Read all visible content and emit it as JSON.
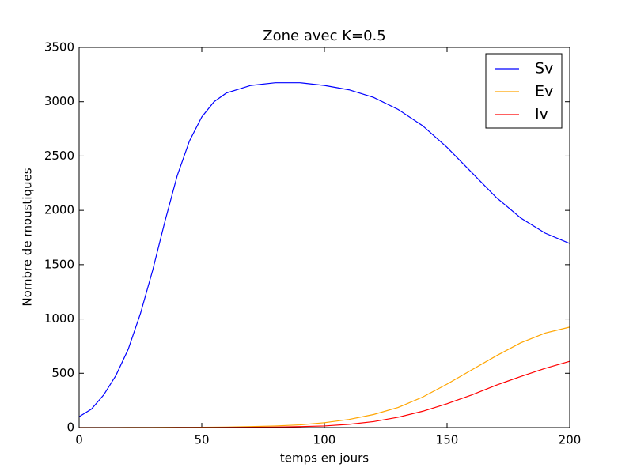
{
  "chart_data": {
    "type": "line",
    "title": "Zone avec K=0.5",
    "xlabel": "temps en jours",
    "ylabel": "Nombre de moustiques",
    "x": [
      0,
      5,
      10,
      15,
      20,
      25,
      30,
      35,
      40,
      45,
      50,
      55,
      60,
      70,
      80,
      90,
      100,
      110,
      120,
      130,
      140,
      150,
      160,
      170,
      180,
      190,
      200
    ],
    "series": [
      {
        "name": "Sv",
        "color": "#0000ff",
        "values": [
          100,
          170,
          300,
          480,
          720,
          1050,
          1450,
          1900,
          2320,
          2640,
          2860,
          3000,
          3080,
          3150,
          3175,
          3175,
          3150,
          3110,
          3040,
          2930,
          2780,
          2580,
          2350,
          2120,
          1930,
          1790,
          1695
        ]
      },
      {
        "name": "Ev",
        "color": "#ffa500",
        "values": [
          0,
          0,
          0,
          0,
          1,
          1,
          1,
          2,
          2,
          2,
          3,
          4,
          5,
          9,
          15,
          25,
          45,
          75,
          120,
          185,
          280,
          400,
          530,
          660,
          780,
          870,
          925
        ]
      },
      {
        "name": "Iv",
        "color": "#ff0000",
        "values": [
          0,
          0,
          0,
          0,
          0,
          0,
          0,
          0,
          1,
          1,
          1,
          1,
          2,
          3,
          5,
          9,
          15,
          30,
          55,
          95,
          150,
          220,
          300,
          390,
          470,
          545,
          610
        ]
      }
    ],
    "xlim": [
      0,
      200
    ],
    "xticks": [
      0,
      50,
      100,
      150,
      200
    ],
    "ylim": [
      0,
      3500
    ],
    "yticks": [
      0,
      500,
      1000,
      1500,
      2000,
      2500,
      3000,
      3500
    ],
    "legend": "upper right"
  }
}
